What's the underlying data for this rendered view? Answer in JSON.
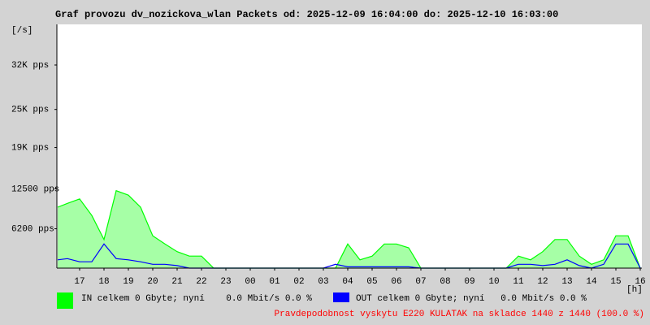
{
  "chart_data": {
    "type": "line",
    "title": "Graf provozu dv_nozickova_wlan Packets od: 2025-12-09 16:04:00 do: 2025-12-10 16:03:00",
    "y_unit": "[/s]",
    "x_unit": "[h]",
    "x": [
      16.1,
      16.5,
      17,
      17.5,
      18,
      18.5,
      19,
      19.5,
      20,
      20.5,
      21,
      21.5,
      22,
      22.5,
      23,
      23.5,
      24,
      24.5,
      25,
      25.5,
      26,
      26.5,
      27,
      27.5,
      28,
      28.5,
      29,
      29.5,
      30,
      30.5,
      31,
      31.5,
      32,
      32.5,
      33,
      33.5,
      34,
      34.5,
      35,
      35.5,
      36,
      36.5,
      37,
      37.5,
      38,
      38.5,
      39,
      39.5,
      40
    ],
    "series": [
      {
        "name": "IN celkem 0 Gbyte; nyní    0.0 Mbit/s 0.0 %",
        "color": "#00ff00",
        "area": true,
        "values": [
          9600,
          10200,
          10900,
          8300,
          4500,
          12200,
          11500,
          9600,
          5100,
          3800,
          2600,
          1900,
          1900,
          0,
          0,
          0,
          0,
          0,
          0,
          0,
          0,
          0,
          0,
          0,
          3800,
          1300,
          1900,
          3800,
          3800,
          3200,
          0,
          0,
          0,
          0,
          0,
          0,
          0,
          0,
          1900,
          1300,
          2600,
          4500,
          4500,
          1900,
          600,
          1300,
          5100,
          5100,
          0
        ]
      },
      {
        "name": "OUT celkem 0 Gbyte; nyní   0.0 Mbit/s 0.0 %",
        "color": "#0000ff",
        "area": false,
        "values": [
          1300,
          1500,
          1000,
          1000,
          3800,
          1500,
          1300,
          1000,
          600,
          600,
          400,
          0,
          0,
          0,
          0,
          0,
          0,
          0,
          0,
          0,
          0,
          0,
          0,
          600,
          200,
          200,
          200,
          200,
          200,
          200,
          0,
          0,
          0,
          0,
          0,
          0,
          0,
          0,
          600,
          600,
          400,
          600,
          1300,
          400,
          0,
          600,
          3800,
          3800,
          0
        ]
      }
    ],
    "xlim": [
      16.0667,
      40.0667
    ],
    "xticks": [
      17,
      18,
      19,
      20,
      21,
      22,
      23,
      {
        "value": 24,
        "label": "00"
      },
      {
        "value": 25,
        "label": "01"
      },
      {
        "value": 26,
        "label": "02"
      },
      {
        "value": 27,
        "label": "03"
      },
      {
        "value": 28,
        "label": "04"
      },
      {
        "value": 29,
        "label": "05"
      },
      {
        "value": 30,
        "label": "06"
      },
      {
        "value": 31,
        "label": "07"
      },
      {
        "value": 32,
        "label": "08"
      },
      {
        "value": 33,
        "label": "09"
      },
      {
        "value": 34,
        "label": "10"
      },
      {
        "value": 35,
        "label": "11"
      },
      {
        "value": 36,
        "label": "12"
      },
      {
        "value": 37,
        "label": "13"
      },
      {
        "value": 38,
        "label": "14"
      },
      {
        "value": 39,
        "label": "15"
      },
      {
        "value": 40,
        "label": "16"
      }
    ],
    "ylim": [
      0,
      38400
    ],
    "yticks": [
      {
        "value": 6200,
        "label": "6200 pps"
      },
      {
        "value": 12500,
        "label": "12500 pps"
      },
      {
        "value": 19000,
        "label": "19K pps"
      },
      {
        "value": 25000,
        "label": "25K pps"
      },
      {
        "value": 32000,
        "label": "32K pps"
      }
    ],
    "note": "Pravdepodobnost vyskytu E220 KULATAK na skladce 1440 z 1440 (100.0 %)"
  }
}
